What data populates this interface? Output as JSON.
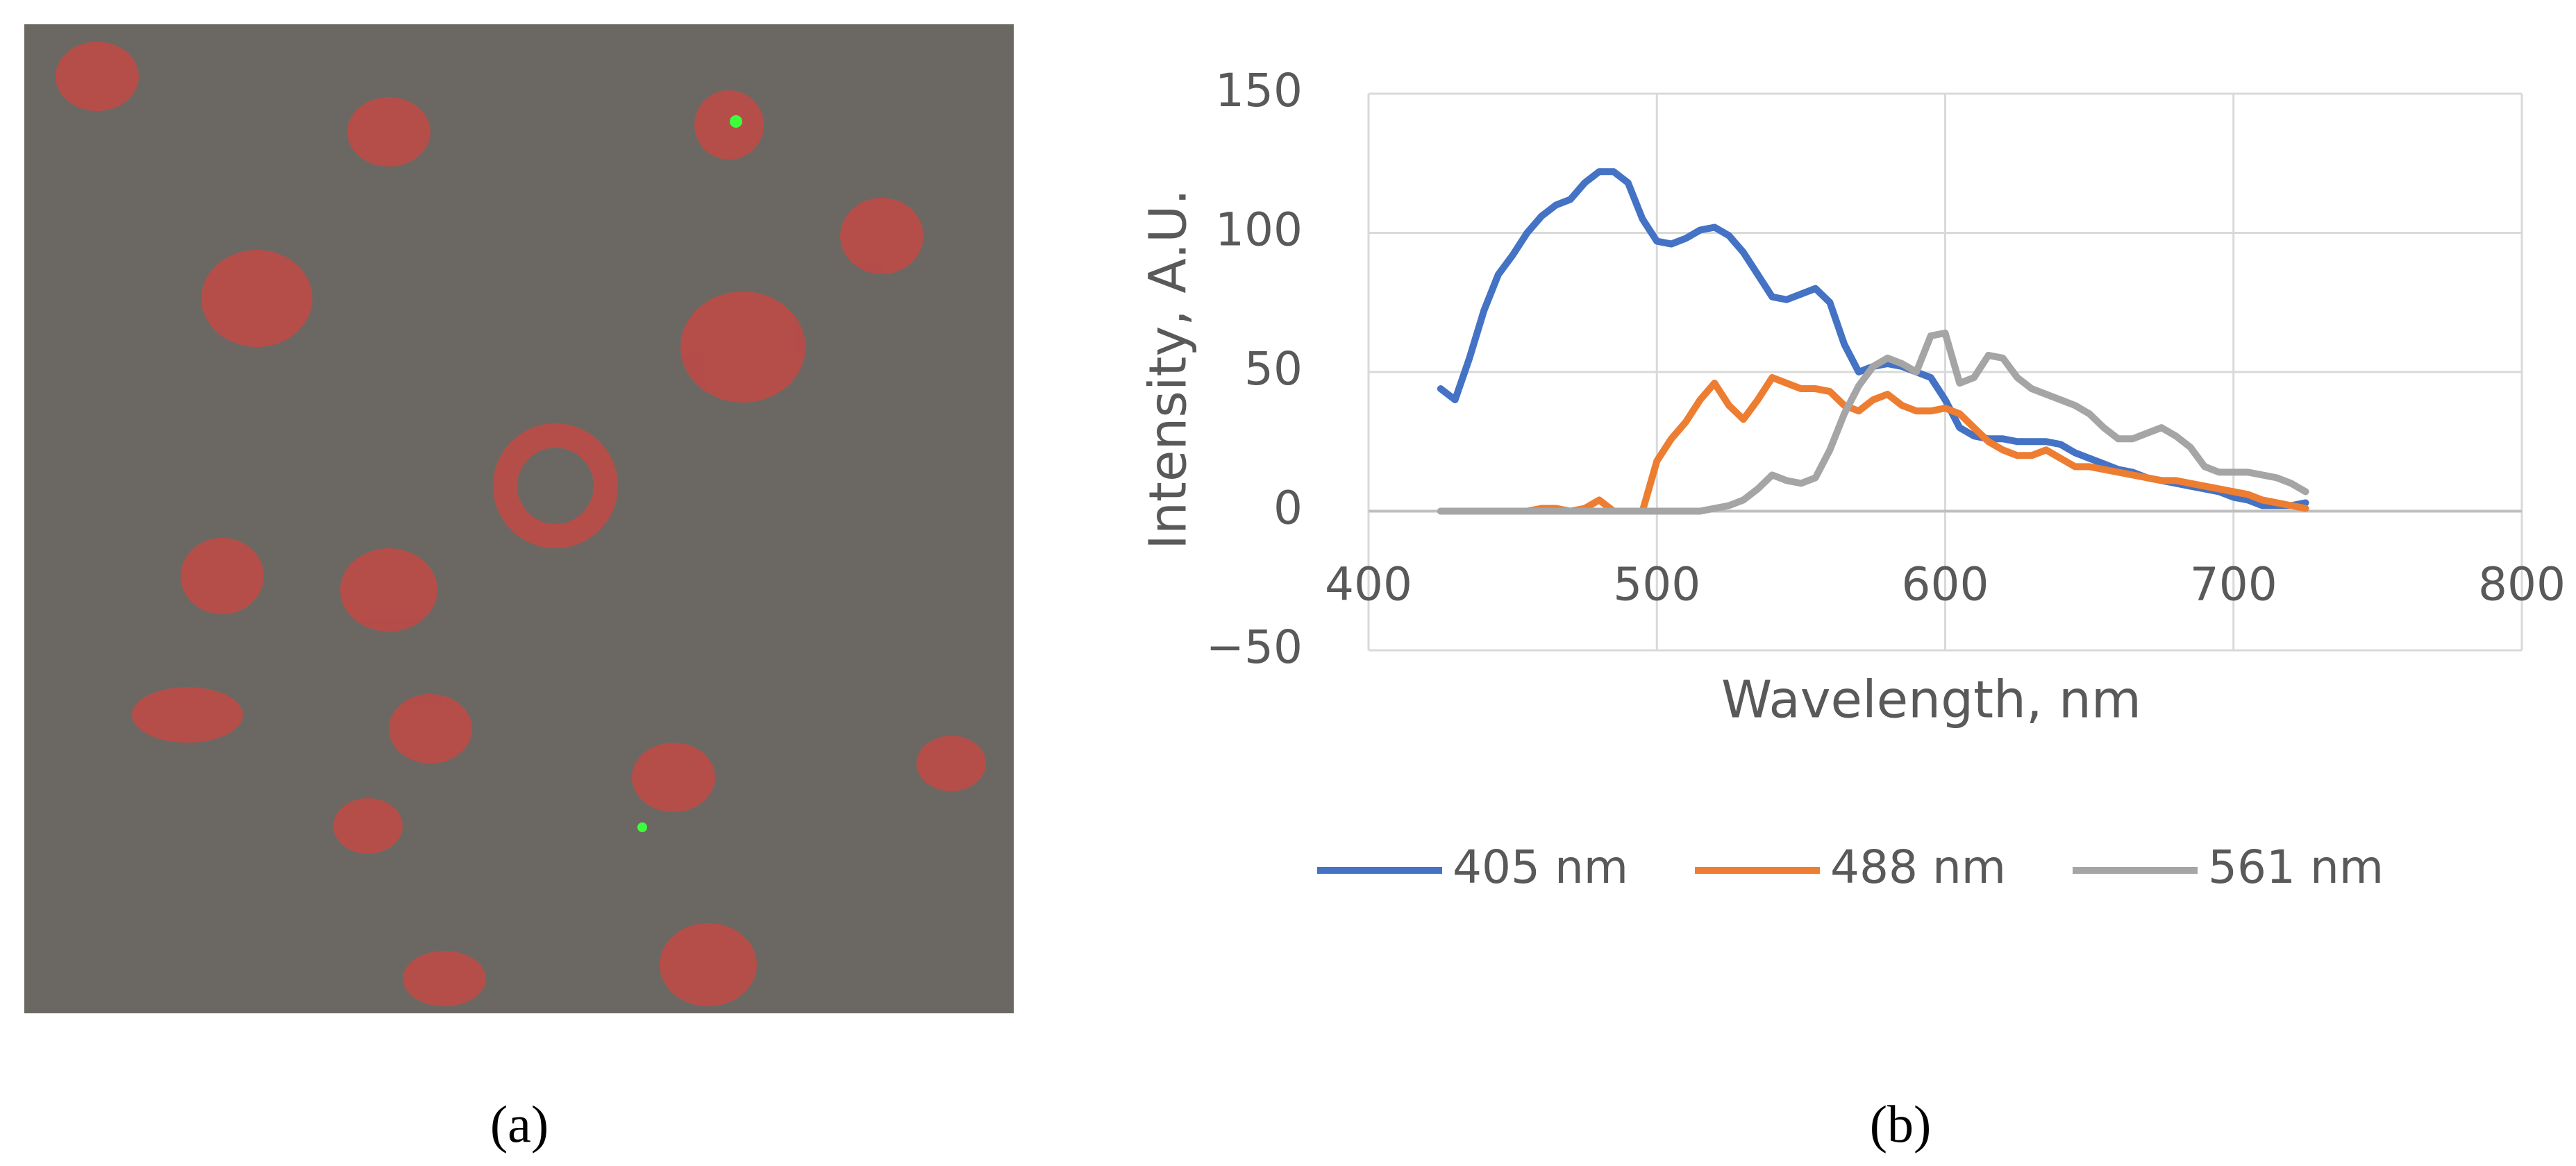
{
  "panel_labels": [
    "(a)",
    "(b)"
  ],
  "chart_data": {
    "type": "line",
    "x_label": "Wavelength, nm",
    "y_label": "Intensity, A.U.",
    "x": [
      425,
      430,
      435,
      440,
      445,
      450,
      455,
      460,
      465,
      470,
      475,
      480,
      485,
      490,
      495,
      500,
      505,
      510,
      515,
      520,
      525,
      530,
      535,
      540,
      545,
      550,
      555,
      560,
      565,
      570,
      575,
      580,
      585,
      590,
      595,
      600,
      605,
      610,
      615,
      620,
      625,
      630,
      635,
      640,
      645,
      650,
      655,
      660,
      665,
      670,
      675,
      680,
      685,
      690,
      695,
      700,
      705,
      710,
      715,
      720,
      725
    ],
    "series": [
      {
        "name": "405 nm",
        "color": "#4472c4",
        "values": [
          44,
          40,
          55,
          72,
          85,
          92,
          100,
          106,
          110,
          112,
          118,
          122,
          122,
          118,
          105,
          97,
          96,
          98,
          101,
          102,
          99,
          93,
          85,
          77,
          76,
          78,
          80,
          75,
          60,
          50,
          52,
          53,
          52,
          50,
          48,
          40,
          30,
          27,
          26,
          26,
          25,
          25,
          25,
          24,
          21,
          19,
          17,
          15,
          14,
          12,
          11,
          10,
          9,
          8,
          7,
          5,
          4,
          2,
          2,
          2,
          3
        ]
      },
      {
        "name": "488 nm",
        "color": "#ed7d31",
        "values": [
          0,
          0,
          0,
          0,
          0,
          0,
          0,
          1,
          1,
          0,
          1,
          4,
          0,
          0,
          0,
          18,
          26,
          32,
          40,
          46,
          38,
          33,
          40,
          48,
          46,
          44,
          44,
          43,
          38,
          36,
          40,
          42,
          38,
          36,
          36,
          37,
          35,
          30,
          25,
          22,
          20,
          20,
          22,
          19,
          16,
          16,
          15,
          14,
          13,
          12,
          11,
          11,
          10,
          9,
          8,
          7,
          6,
          4,
          3,
          2,
          1
        ]
      },
      {
        "name": "561 nm",
        "color": "#a5a5a5",
        "values": [
          0,
          0,
          0,
          0,
          0,
          0,
          0,
          0,
          0,
          0,
          0,
          0,
          0,
          0,
          0,
          0,
          0,
          0,
          0,
          1,
          2,
          4,
          8,
          13,
          11,
          10,
          12,
          22,
          35,
          45,
          52,
          55,
          53,
          50,
          63,
          64,
          46,
          48,
          56,
          55,
          48,
          44,
          42,
          40,
          38,
          35,
          30,
          26,
          26,
          28,
          30,
          27,
          23,
          16,
          14,
          14,
          14,
          13,
          12,
          10,
          7
        ]
      }
    ],
    "xlim": [
      400,
      800
    ],
    "xticks": [
      400,
      500,
      600,
      700,
      800
    ],
    "ylim": [
      -50,
      150
    ],
    "yticks": [
      {
        "value": -50,
        "label": "−50"
      },
      0,
      50,
      100,
      150
    ],
    "grid": true,
    "legend": "bottom"
  }
}
